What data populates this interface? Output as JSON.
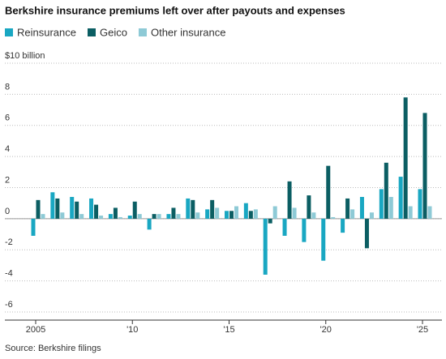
{
  "chart_data": {
    "type": "bar",
    "title": "Berkshire insurance premiums left over after payouts and expenses",
    "source": "Source: Berkshire filings",
    "categories": [
      "2005",
      null,
      null,
      null,
      null,
      "'10",
      null,
      null,
      null,
      null,
      "'15",
      null,
      null,
      null,
      null,
      "'20",
      null,
      null,
      null,
      null,
      "'25"
    ],
    "series": [
      {
        "name": "Reinsurance",
        "color": "#19a7c2",
        "values": [
          -1.1,
          1.7,
          1.4,
          1.3,
          0.3,
          0.2,
          -0.7,
          0.3,
          1.3,
          0.6,
          0.5,
          1.0,
          -3.6,
          -1.1,
          -1.5,
          -2.7,
          -0.9,
          1.4,
          1.9,
          2.7,
          1.9
        ]
      },
      {
        "name": "Geico",
        "color": "#0b5e63",
        "values": [
          1.2,
          1.3,
          1.1,
          0.9,
          0.7,
          1.1,
          0.3,
          0.7,
          1.2,
          1.2,
          0.5,
          0.5,
          -0.3,
          2.4,
          1.5,
          3.4,
          1.3,
          -1.9,
          3.6,
          7.8,
          6.8
        ]
      },
      {
        "name": "Other insurance",
        "color": "#8ecad6",
        "values": [
          0.3,
          0.4,
          0.3,
          0.2,
          0.1,
          0.3,
          0.3,
          0.3,
          0.4,
          0.7,
          0.8,
          0.6,
          0.8,
          0.7,
          0.4,
          0.1,
          0.6,
          0.4,
          1.4,
          0.8,
          0.8
        ]
      }
    ],
    "ylim": [
      -6,
      10
    ],
    "yticks": [
      {
        "value": 10,
        "label": "$10 billion"
      },
      8,
      6,
      4,
      2,
      0,
      -2,
      -4,
      -6
    ],
    "grid": true
  }
}
